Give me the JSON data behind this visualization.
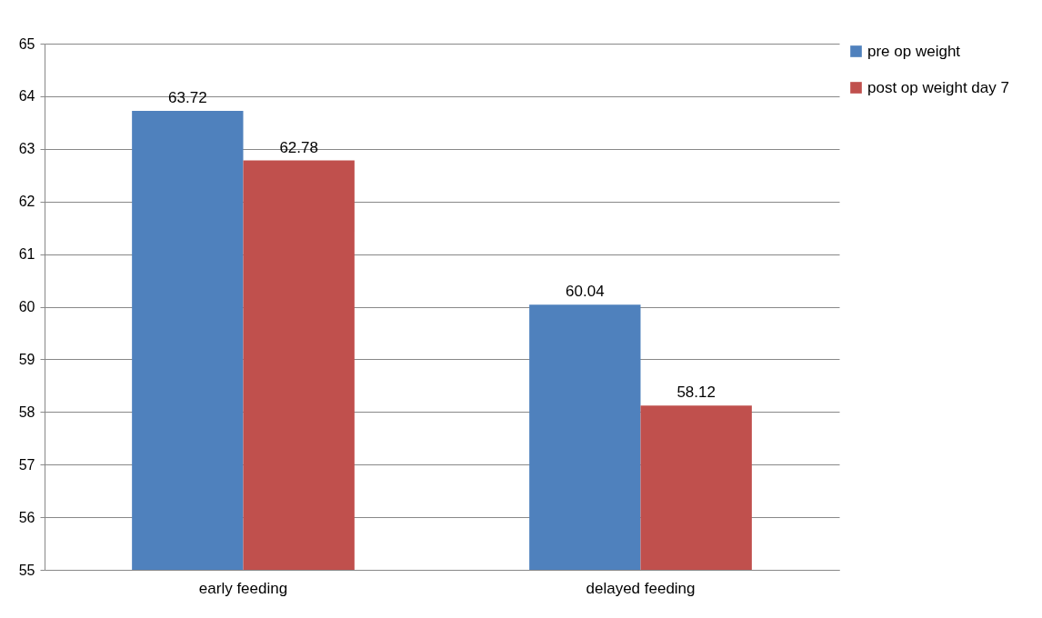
{
  "chart_data": {
    "type": "bar",
    "categories": [
      "early feeding",
      "delayed feeding"
    ],
    "series": [
      {
        "name": "pre op weight",
        "color": "#4f81bd",
        "values": [
          63.72,
          60.04
        ]
      },
      {
        "name": "post op weight day 7",
        "color": "#c0504d",
        "values": [
          62.78,
          58.12
        ]
      }
    ],
    "ylim": [
      55,
      65
    ],
    "yticks": [
      55,
      56,
      57,
      58,
      59,
      60,
      61,
      62,
      63,
      64,
      65
    ],
    "grid": "y",
    "legend": "right",
    "data_labels": true
  }
}
